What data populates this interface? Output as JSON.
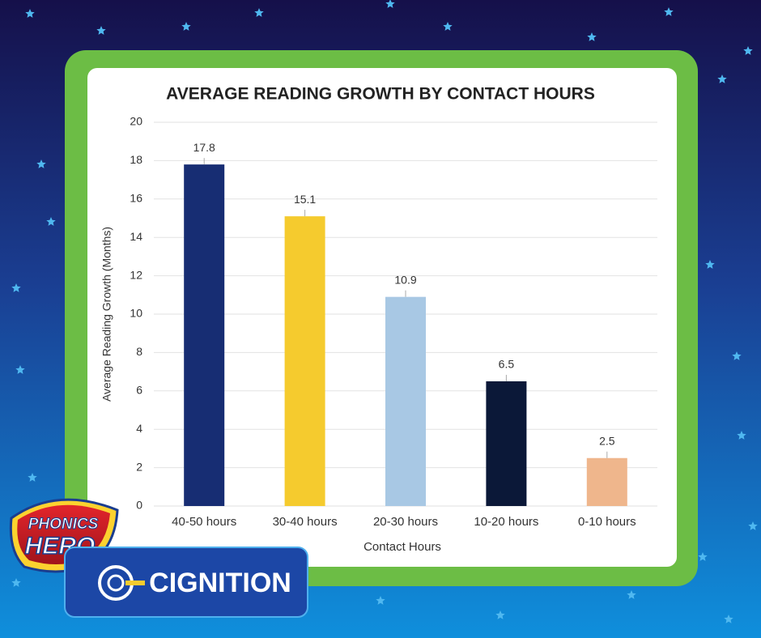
{
  "chart_data": {
    "type": "bar",
    "title": "AVERAGE READING GROWTH BY CONTACT HOURS",
    "x_label": "Contact Hours",
    "y_label": "Average Reading Growth (Months)",
    "categories": [
      "40-50 hours",
      "30-40 hours",
      "20-30 hours",
      "10-20 hours",
      "0-10 hours"
    ],
    "values": [
      17.8,
      15.1,
      10.9,
      6.5,
      2.5
    ],
    "colors": [
      "#172d73",
      "#f5cb2e",
      "#a8c8e4",
      "#0b1838",
      "#efb68c"
    ],
    "ylim": [
      0,
      20
    ],
    "yticks": [
      0,
      2,
      4,
      6,
      8,
      10,
      12,
      14,
      16,
      18,
      20
    ],
    "grid": true
  },
  "logos": {
    "phonics_hero": [
      "PHONICS",
      "HERO"
    ],
    "cignition": "CIGNITION"
  }
}
